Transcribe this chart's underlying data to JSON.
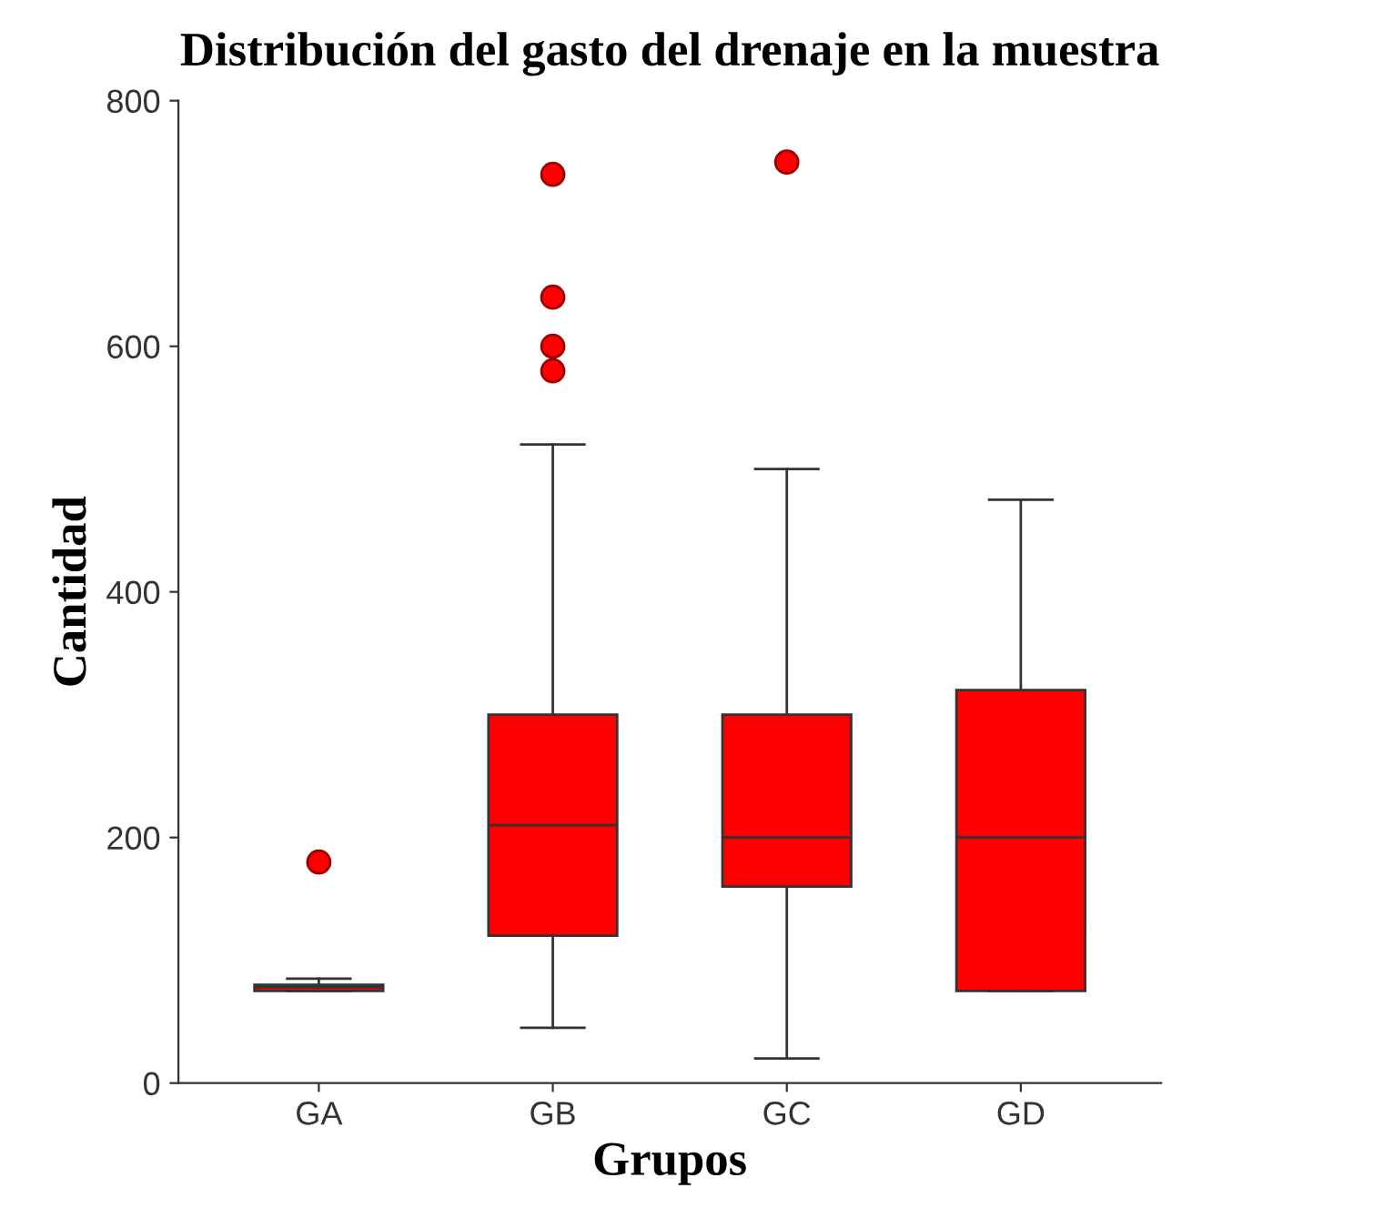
{
  "chart_data": {
    "type": "box",
    "title": "Distribución del gasto del drenaje en la muestra",
    "xlabel": "Grupos",
    "ylabel": "Cantidad",
    "categories": [
      "GA",
      "GB",
      "GC",
      "GD"
    ],
    "color": "#ff0000",
    "boxes": [
      {
        "low": 75,
        "q1": 75,
        "median": 78,
        "q3": 80,
        "high": 85,
        "outliers": [
          180
        ]
      },
      {
        "low": 45,
        "q1": 120,
        "median": 210,
        "q3": 300,
        "high": 520,
        "outliers": [
          580,
          600,
          640,
          740
        ]
      },
      {
        "low": 20,
        "q1": 160,
        "median": 200,
        "q3": 300,
        "high": 500,
        "outliers": [
          750
        ]
      },
      {
        "low": 75,
        "q1": 75,
        "median": 200,
        "q3": 320,
        "high": 475
      }
    ],
    "ylim": [
      0,
      800
    ],
    "yticks": [
      0,
      200,
      400,
      600,
      800
    ],
    "grid": false
  }
}
